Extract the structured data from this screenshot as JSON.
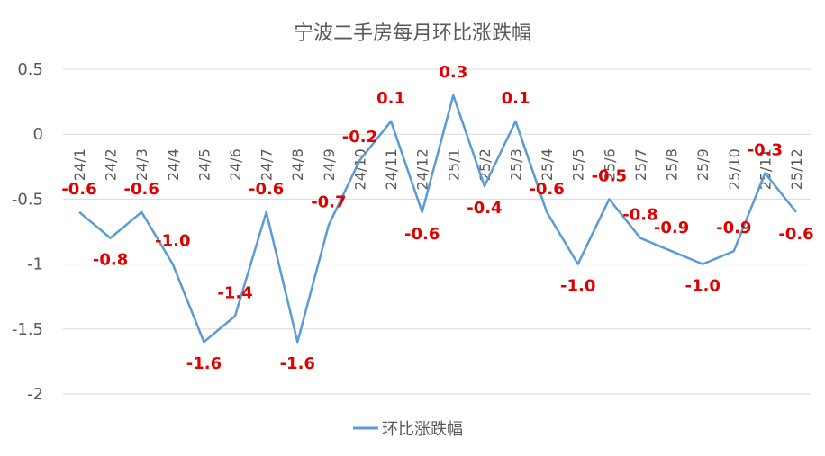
{
  "chart_data": {
    "type": "line",
    "title": "宁波二手房每月环比涨跌幅",
    "xlabel": "",
    "ylabel": "",
    "categories": [
      "24/1",
      "24/2",
      "24/3",
      "24/4",
      "24/5",
      "24/6",
      "24/7",
      "24/8",
      "24/9",
      "24/10",
      "24/11",
      "24/12",
      "25/1",
      "25/2",
      "25/3",
      "25/4",
      "25/5",
      "25/6",
      "25/7",
      "25/8",
      "25/9",
      "25/10",
      "25/11",
      "25/12"
    ],
    "series": [
      {
        "name": "环比涨跌幅",
        "values": [
          -0.6,
          -0.8,
          -0.6,
          -1.0,
          -1.6,
          -1.4,
          -0.6,
          -1.6,
          -0.7,
          -0.2,
          0.1,
          -0.6,
          0.3,
          -0.4,
          0.1,
          -0.6,
          -1.0,
          -0.5,
          -0.8,
          -0.9,
          -1.0,
          -0.9,
          -0.3,
          -0.6
        ],
        "labels": [
          "-0.6",
          "-0.8",
          "-0.6",
          "-1.0",
          "-1.6",
          "-1.4",
          "-0.6",
          "-1.6",
          "-0.7",
          "-0.2",
          "0.1",
          "-0.6",
          "0.3",
          "-0.4",
          "0.1",
          "-0.6",
          "-1.0",
          "-0.5",
          "-0.8",
          "-0.9",
          "-1.0",
          "-0.9",
          "-0.3",
          "-0.6"
        ]
      }
    ],
    "ylim": [
      -2,
      0.5
    ],
    "yticks": [
      0.5,
      0,
      -0.5,
      -1,
      -1.5,
      -2
    ],
    "ytick_labels": [
      "0.5",
      "0",
      "-0.5",
      "-1",
      "-1.5",
      "-2"
    ],
    "grid": true,
    "legend": "bottom",
    "colors": {
      "line": "#5b9bd5",
      "labels": "#e00000",
      "grid": "#d9d9d9",
      "text": "#595959"
    }
  }
}
